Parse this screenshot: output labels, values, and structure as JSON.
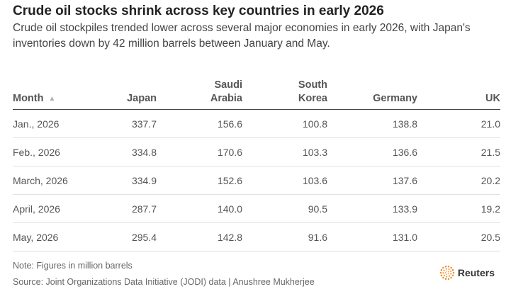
{
  "title": "Crude oil stocks shrink across key countries in early 2026",
  "subtitle": "Crude oil stockpiles trended lower across several major economies in early 2026, with Japan's inventories down by 42 million barrels between January and May.",
  "note": "Note: Figures in million barrels",
  "source": "Source: Joint Organizations Data Initiative (JODI) data | Anushree Mukherjee",
  "logo": {
    "icon": "reuters-logo-icon",
    "text": "Reuters",
    "color": "#f28c28"
  },
  "sort_icon": "sort-ascending-icon",
  "chart_data": {
    "type": "table",
    "columns": [
      "Month",
      "Japan",
      "Saudi Arabia",
      "South Korea",
      "Germany",
      "UK"
    ],
    "header_lines": [
      [
        "Month"
      ],
      [
        "Japan"
      ],
      [
        "Saudi",
        "Arabia"
      ],
      [
        "South",
        "Korea"
      ],
      [
        "Germany"
      ],
      [
        "UK"
      ]
    ],
    "rows": [
      {
        "month": "Jan., 2026",
        "values": [
          "337.7",
          "156.6",
          "100.8",
          "138.8",
          "21.0"
        ]
      },
      {
        "month": "Feb., 2026",
        "values": [
          "334.8",
          "170.6",
          "103.3",
          "136.6",
          "21.5"
        ]
      },
      {
        "month": "March, 2026",
        "values": [
          "334.9",
          "152.6",
          "103.6",
          "137.6",
          "20.2"
        ]
      },
      {
        "month": "April, 2026",
        "values": [
          "287.7",
          "140.0",
          "90.5",
          "133.9",
          "19.2"
        ]
      },
      {
        "month": "May, 2026",
        "values": [
          "295.4",
          "142.8",
          "91.6",
          "131.0",
          "20.5"
        ]
      }
    ]
  }
}
